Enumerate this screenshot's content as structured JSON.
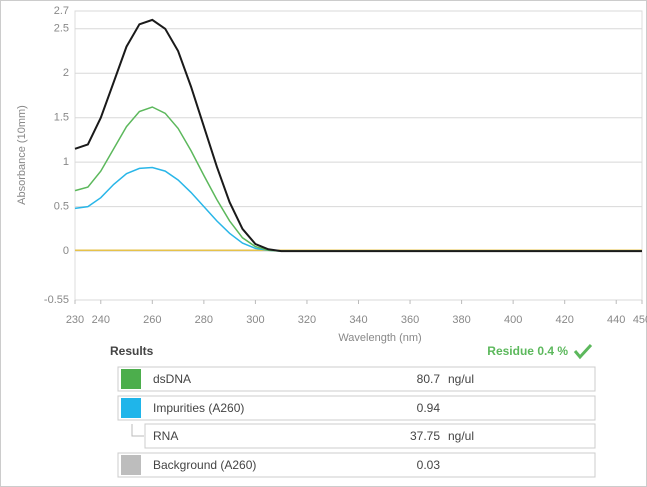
{
  "chart_data": {
    "type": "line",
    "y_label": "Absorbance (10mm)",
    "x_label": "Wavelength (nm)",
    "x": [
      230,
      235,
      240,
      245,
      250,
      255,
      260,
      265,
      270,
      275,
      280,
      285,
      290,
      295,
      300,
      305,
      310,
      320,
      340,
      360,
      380,
      400,
      420,
      440,
      450
    ],
    "series": [
      {
        "color": "#1a1a1a",
        "values": [
          1.15,
          1.2,
          1.5,
          1.9,
          2.3,
          2.55,
          2.6,
          2.5,
          2.25,
          1.85,
          1.4,
          0.95,
          0.55,
          0.25,
          0.08,
          0.02,
          0,
          0,
          0,
          0,
          0,
          0,
          0,
          0,
          0
        ]
      },
      {
        "color": "#5cb85c",
        "values": [
          0.68,
          0.72,
          0.9,
          1.15,
          1.4,
          1.57,
          1.62,
          1.55,
          1.38,
          1.13,
          0.85,
          0.58,
          0.34,
          0.15,
          0.05,
          0.01,
          0,
          0,
          0,
          0,
          0,
          0,
          0,
          0,
          0
        ]
      },
      {
        "color": "#29b6e8",
        "values": [
          0.48,
          0.5,
          0.6,
          0.75,
          0.87,
          0.93,
          0.94,
          0.9,
          0.8,
          0.66,
          0.5,
          0.34,
          0.2,
          0.09,
          0.03,
          0.01,
          0,
          0,
          0,
          0,
          0,
          0,
          0,
          0,
          0
        ]
      },
      {
        "color": "#e6c24a",
        "values": [
          0.01,
          0.01,
          0.01,
          0.01,
          0.01,
          0.01,
          0.01,
          0.01,
          0.01,
          0.01,
          0.01,
          0.01,
          0.01,
          0.01,
          0.01,
          0.01,
          0.01,
          0.01,
          0.01,
          0.01,
          0.01,
          0.01,
          0.01,
          0.01,
          0.01
        ]
      }
    ],
    "xlim": [
      230,
      450
    ],
    "xticks": [
      230,
      240,
      260,
      280,
      300,
      320,
      340,
      360,
      380,
      400,
      420,
      440,
      450
    ],
    "ylim": [
      -0.55,
      2.7
    ],
    "yticks": [
      -0.55,
      0,
      0.5,
      1,
      1.5,
      2,
      2.5,
      2.7
    ],
    "grid": true
  },
  "results": {
    "title": "Results",
    "residue": "Residue 0.4 %",
    "rows": [
      {
        "color": "#4cae4c",
        "label": "dsDNA",
        "value": 80.7,
        "unit": "ng/ul"
      },
      {
        "color": "#1fb5ea",
        "label": "Impurities (A260)",
        "value": 0.94
      },
      {
        "label": "RNA",
        "value": 37.75,
        "unit": "ng/ul"
      },
      {
        "color": "#bdbdbd",
        "label": "Background (A260)",
        "value": 0.03
      }
    ]
  }
}
